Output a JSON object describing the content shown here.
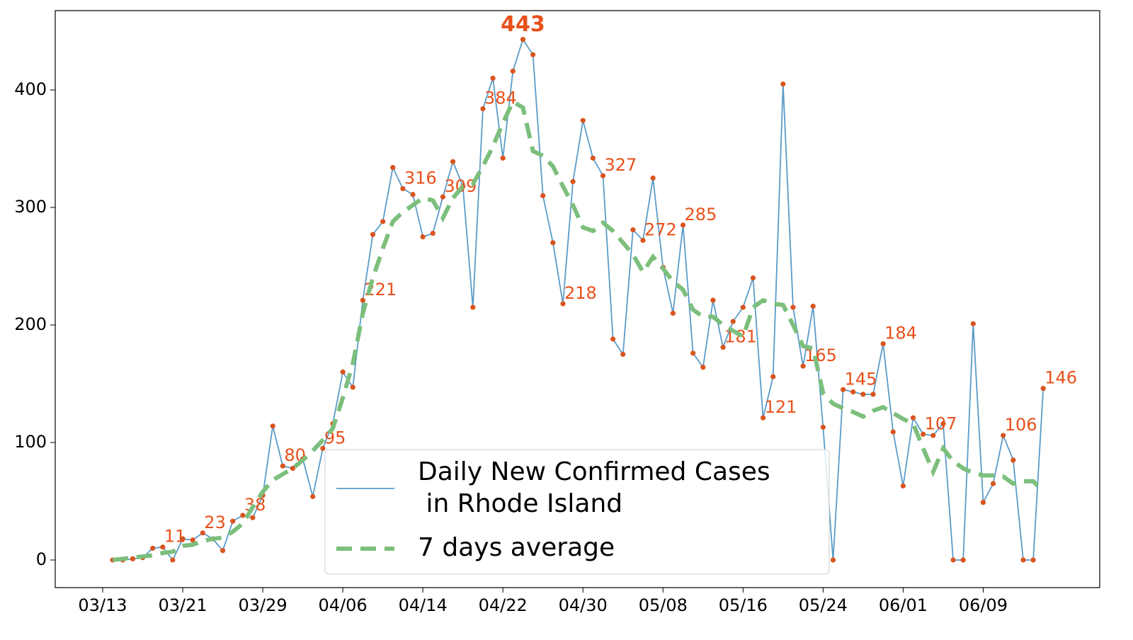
{
  "chart_data": {
    "type": "line",
    "x": [
      "03/14",
      "03/15",
      "03/16",
      "03/17",
      "03/18",
      "03/19",
      "03/20",
      "03/21",
      "03/22",
      "03/23",
      "03/24",
      "03/25",
      "03/26",
      "03/27",
      "03/28",
      "03/29",
      "03/30",
      "03/31",
      "04/01",
      "04/02",
      "04/03",
      "04/04",
      "04/05",
      "04/06",
      "04/07",
      "04/08",
      "04/09",
      "04/10",
      "04/11",
      "04/12",
      "04/13",
      "04/14",
      "04/15",
      "04/16",
      "04/17",
      "04/18",
      "04/19",
      "04/20",
      "04/21",
      "04/22",
      "04/23",
      "04/24",
      "04/25",
      "04/26",
      "04/27",
      "04/28",
      "04/29",
      "04/30",
      "05/01",
      "05/02",
      "05/03",
      "05/04",
      "05/05",
      "05/06",
      "05/07",
      "05/08",
      "05/09",
      "05/10",
      "05/11",
      "05/12",
      "05/13",
      "05/14",
      "05/15",
      "05/16",
      "05/17",
      "05/18",
      "05/19",
      "05/20",
      "05/21",
      "05/22",
      "05/23",
      "05/24",
      "05/25",
      "05/26",
      "05/27",
      "05/28",
      "05/29",
      "05/30",
      "05/31",
      "06/01",
      "06/02",
      "06/03",
      "06/04",
      "06/05",
      "06/06",
      "06/07",
      "06/08",
      "06/09",
      "06/10",
      "06/11",
      "06/12",
      "06/13",
      "06/14",
      "06/15"
    ],
    "series": [
      {
        "name": "Daily New Confirmed Cases\n in Rhode Island",
        "color": "#5b9bc8",
        "marker_color": "#d9541e",
        "values": [
          0,
          0,
          1,
          2,
          10,
          11,
          0,
          18,
          17,
          23,
          18,
          8,
          33,
          38,
          36,
          55,
          114,
          80,
          78,
          86,
          54,
          95,
          116,
          160,
          147,
          221,
          277,
          288,
          334,
          316,
          311,
          275,
          278,
          309,
          339,
          318,
          215,
          384,
          410,
          342,
          416,
          443,
          430,
          310,
          270,
          218,
          322,
          374,
          342,
          327,
          188,
          175,
          281,
          272,
          325,
          249,
          210,
          285,
          176,
          164,
          221,
          181,
          203,
          215,
          240,
          121,
          156,
          405,
          215,
          165,
          216,
          113,
          0,
          145,
          143,
          141,
          141,
          184,
          109,
          63,
          121,
          107,
          106,
          116,
          0,
          0,
          201,
          49,
          65,
          106,
          85,
          0,
          0,
          146
        ],
        "value_labels": [
          null,
          null,
          null,
          null,
          null,
          "11",
          null,
          null,
          null,
          "23",
          null,
          null,
          null,
          "38",
          null,
          null,
          null,
          "80",
          null,
          null,
          null,
          "95",
          null,
          null,
          null,
          "221",
          null,
          null,
          null,
          "316",
          null,
          null,
          null,
          "309",
          null,
          null,
          null,
          "384",
          null,
          null,
          null,
          "443",
          null,
          null,
          null,
          "218",
          null,
          null,
          null,
          "327",
          null,
          null,
          null,
          "272",
          null,
          null,
          null,
          "285",
          null,
          null,
          null,
          "181",
          null,
          null,
          null,
          "121",
          null,
          null,
          null,
          "165",
          null,
          null,
          null,
          "145",
          null,
          null,
          null,
          "184",
          null,
          null,
          null,
          "107",
          null,
          null,
          null,
          null,
          null,
          null,
          null,
          "106",
          null,
          null,
          null,
          "146"
        ]
      },
      {
        "name": "7 days average",
        "color": "#7cbf7c",
        "dashed": true,
        "values": [
          0,
          1,
          2,
          3,
          4,
          6,
          7,
          12,
          13,
          16,
          18,
          19,
          24,
          31,
          45,
          58,
          68,
          73,
          78,
          85,
          93,
          102,
          112,
          138,
          167,
          210,
          240,
          265,
          288,
          296,
          302,
          308,
          306,
          291,
          308,
          318,
          320,
          335,
          352,
          372,
          390,
          385,
          348,
          344,
          335,
          318,
          302,
          283,
          280,
          287,
          280,
          270,
          260,
          245,
          258,
          248,
          237,
          230,
          213,
          207,
          207,
          200,
          195,
          190,
          215,
          221,
          218,
          217,
          200,
          182,
          180,
          142,
          133,
          129,
          126,
          122,
          127,
          130,
          125,
          120,
          116,
          95,
          75,
          95,
          84,
          78,
          74,
          72,
          72,
          71,
          65,
          67,
          67,
          58
        ]
      }
    ],
    "ylim": [
      -23.5,
      467.5
    ],
    "yticks": [
      0,
      100,
      200,
      300,
      400
    ],
    "xticks": [
      "03/13",
      "03/21",
      "03/29",
      "04/06",
      "04/14",
      "04/22",
      "04/30",
      "05/08",
      "05/16",
      "05/24",
      "06/01",
      "06/09"
    ],
    "legend": "lower center"
  }
}
